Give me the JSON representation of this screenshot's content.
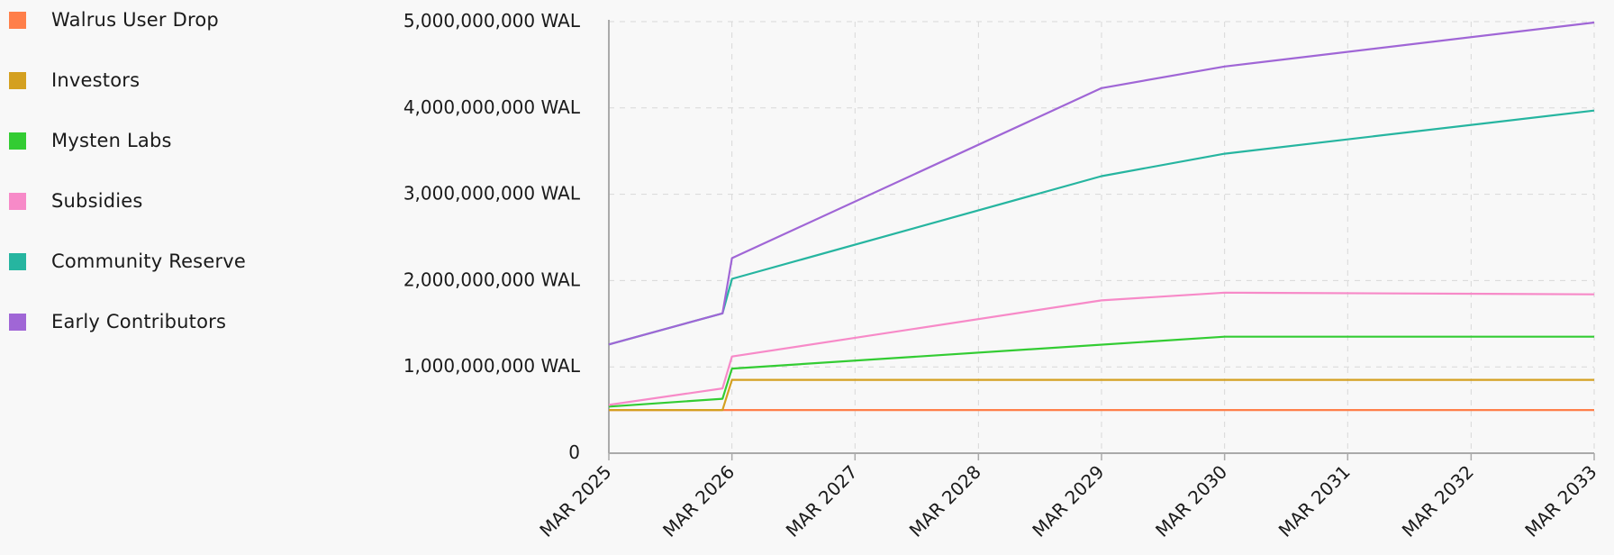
{
  "chart_data": {
    "type": "line",
    "title": "",
    "xlabel": "",
    "ylabel": "",
    "ylim": [
      0,
      5000000000
    ],
    "y_ticks": [
      {
        "value": 0,
        "label": "0"
      },
      {
        "value": 1000000000,
        "label": "1,000,000,000 WAL"
      },
      {
        "value": 2000000000,
        "label": "2,000,000,000 WAL"
      },
      {
        "value": 3000000000,
        "label": "3,000,000,000 WAL"
      },
      {
        "value": 4000000000,
        "label": "4,000,000,000 WAL"
      },
      {
        "value": 5000000000,
        "label": "5,000,000,000 WAL"
      }
    ],
    "x_range": [
      "2025-03-01",
      "2033-03-01"
    ],
    "x_ticks": [
      {
        "date": "2025-03-01",
        "label": "MAR 2025"
      },
      {
        "date": "2026-03-01",
        "label": "MAR 2026"
      },
      {
        "date": "2027-03-01",
        "label": "MAR 2027"
      },
      {
        "date": "2028-03-01",
        "label": "MAR 2028"
      },
      {
        "date": "2029-03-01",
        "label": "MAR 2029"
      },
      {
        "date": "2030-03-01",
        "label": "MAR 2030"
      },
      {
        "date": "2031-03-01",
        "label": "MAR 2031"
      },
      {
        "date": "2032-03-01",
        "label": "MAR 2032"
      },
      {
        "date": "2033-03-01",
        "label": "MAR 2033"
      }
    ],
    "grid": true,
    "legend_position": "left",
    "series": [
      {
        "name": "Walrus User Drop",
        "color": "#ff7f4a",
        "points": [
          [
            "2025-03-01",
            500000000
          ],
          [
            "2033-03-01",
            500000000
          ]
        ]
      },
      {
        "name": "Investors",
        "color": "#d4a020",
        "points": [
          [
            "2025-03-01",
            500000000
          ],
          [
            "2026-02-01",
            500000000
          ],
          [
            "2026-03-01",
            850000000
          ],
          [
            "2033-03-01",
            850000000
          ]
        ]
      },
      {
        "name": "Mysten Labs",
        "color": "#33cc33",
        "points": [
          [
            "2025-03-01",
            540000000
          ],
          [
            "2026-02-01",
            630000000
          ],
          [
            "2026-03-01",
            980000000
          ],
          [
            "2030-03-01",
            1350000000
          ],
          [
            "2033-03-01",
            1350000000
          ]
        ]
      },
      {
        "name": "Subsidies",
        "color": "#f78ac8",
        "points": [
          [
            "2025-03-01",
            560000000
          ],
          [
            "2026-02-01",
            750000000
          ],
          [
            "2026-03-01",
            1120000000
          ],
          [
            "2029-03-01",
            1770000000
          ],
          [
            "2030-03-01",
            1860000000
          ],
          [
            "2033-03-01",
            1840000000
          ]
        ]
      },
      {
        "name": "Community Reserve",
        "color": "#26b5a0",
        "points": [
          [
            "2025-03-01",
            1260000000
          ],
          [
            "2026-02-01",
            1620000000
          ],
          [
            "2026-03-01",
            2020000000
          ],
          [
            "2029-03-01",
            3210000000
          ],
          [
            "2030-03-01",
            3470000000
          ],
          [
            "2033-03-01",
            3970000000
          ]
        ]
      },
      {
        "name": "Early Contributors",
        "color": "#a066d6",
        "points": [
          [
            "2025-03-01",
            1260000000
          ],
          [
            "2026-02-01",
            1620000000
          ],
          [
            "2026-03-01",
            2260000000
          ],
          [
            "2029-03-01",
            4230000000
          ],
          [
            "2030-03-01",
            4480000000
          ],
          [
            "2033-03-01",
            4990000000
          ]
        ]
      }
    ]
  },
  "legend": {
    "items": [
      {
        "label": "Walrus User Drop",
        "color": "#ff7f4a"
      },
      {
        "label": "Investors",
        "color": "#d4a020"
      },
      {
        "label": "Mysten Labs",
        "color": "#33cc33"
      },
      {
        "label": "Subsidies",
        "color": "#f78ac8"
      },
      {
        "label": "Community Reserve",
        "color": "#26b5a0"
      },
      {
        "label": "Early Contributors",
        "color": "#a066d6"
      }
    ]
  }
}
